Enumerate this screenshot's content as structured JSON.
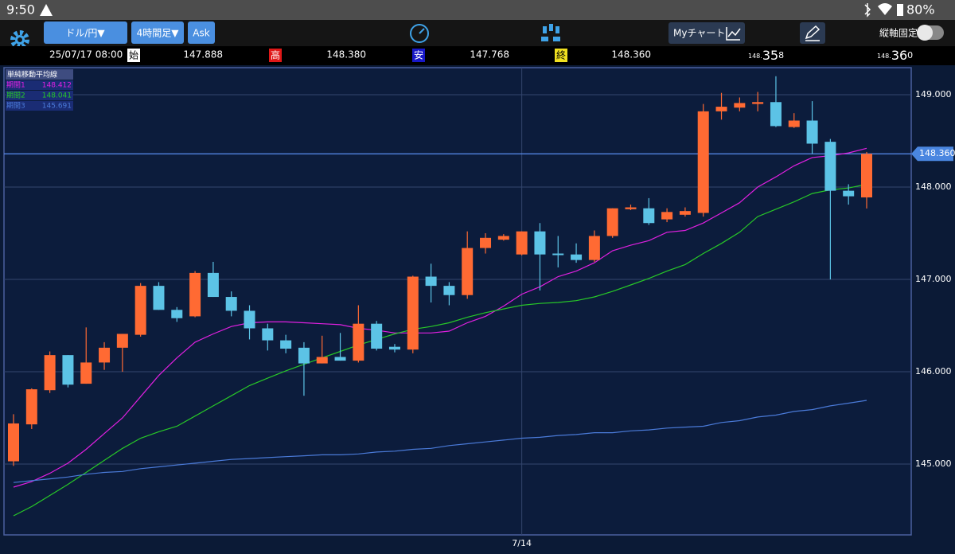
{
  "status_bar": {
    "time": "9:50",
    "battery": "80%"
  },
  "toolbar": {
    "pair": "ドル/円▼",
    "timeframe": "4時間足▼",
    "side": "Ask",
    "my_chart": "Myチャート",
    "axis_lock": "縦軸固定"
  },
  "info": {
    "datetime": "25/07/17 08:00",
    "open_label": "始",
    "open": "147.888",
    "high_label": "高",
    "high": "148.380",
    "low_label": "安",
    "low": "147.768",
    "close_label": "終",
    "close": "148.360"
  },
  "quotes": {
    "bid": {
      "prefix": "148.",
      "big": "35",
      "suffix": "8"
    },
    "ask": {
      "prefix": "148.",
      "big": "36",
      "suffix": "0"
    }
  },
  "chart_data": {
    "type": "candlestick",
    "categories": [
      null,
      null,
      null,
      null,
      null,
      null,
      null,
      null,
      null,
      null,
      null,
      null,
      null,
      null,
      null,
      null,
      null,
      null,
      null,
      null,
      null,
      null,
      null,
      null,
      null,
      null,
      null,
      null,
      "7/14",
      null,
      null,
      null,
      null,
      null,
      null,
      null,
      null,
      null,
      null,
      null,
      null,
      null,
      null,
      null,
      null,
      null,
      null,
      null
    ],
    "open": [
      145.03,
      145.43,
      145.8,
      146.18,
      145.87,
      146.1,
      146.26,
      146.4,
      146.93,
      146.67,
      146.6,
      147.07,
      146.81,
      146.66,
      146.47,
      146.34,
      146.26,
      146.09,
      146.16,
      146.12,
      146.52,
      146.27,
      146.24,
      147.03,
      146.93,
      146.83,
      147.34,
      147.43,
      147.27,
      147.52,
      147.28,
      147.27,
      147.21,
      147.47,
      147.76,
      147.77,
      147.65,
      147.7,
      147.72,
      148.82,
      148.86,
      148.9,
      148.92,
      148.65,
      148.72,
      148.49,
      147.96,
      147.888
    ],
    "high": [
      145.54,
      145.82,
      146.22,
      146.18,
      146.48,
      146.32,
      146.41,
      146.96,
      146.97,
      146.7,
      147.09,
      147.19,
      146.87,
      146.72,
      146.52,
      146.4,
      146.32,
      146.39,
      146.42,
      146.72,
      146.55,
      146.3,
      147.04,
      147.17,
      146.97,
      147.52,
      147.5,
      147.49,
      147.52,
      147.61,
      147.47,
      147.39,
      147.53,
      147.77,
      147.81,
      147.88,
      147.77,
      147.78,
      148.9,
      149.02,
      148.97,
      149.03,
      149.2,
      148.8,
      148.93,
      148.52,
      148.03,
      148.38
    ],
    "low": [
      144.98,
      145.38,
      145.77,
      145.83,
      145.87,
      146.02,
      146.0,
      146.38,
      146.67,
      146.54,
      146.59,
      146.81,
      146.6,
      146.35,
      146.23,
      146.2,
      145.74,
      146.09,
      146.12,
      146.1,
      146.23,
      146.21,
      146.2,
      146.75,
      146.72,
      146.79,
      147.28,
      147.42,
      147.26,
      146.88,
      147.13,
      147.18,
      147.19,
      147.45,
      147.75,
      147.59,
      147.62,
      147.68,
      147.68,
      148.73,
      148.82,
      148.82,
      148.65,
      148.64,
      148.36,
      147.0,
      147.81,
      147.768
    ],
    "close": [
      145.44,
      145.81,
      146.18,
      145.86,
      146.1,
      146.26,
      146.41,
      146.93,
      146.67,
      146.58,
      147.07,
      146.81,
      146.66,
      146.47,
      146.34,
      146.25,
      146.09,
      146.16,
      146.12,
      146.52,
      146.25,
      146.24,
      147.03,
      146.93,
      146.83,
      147.34,
      147.45,
      147.47,
      147.52,
      147.27,
      147.27,
      147.21,
      147.47,
      147.77,
      147.78,
      147.61,
      147.73,
      147.74,
      148.82,
      148.87,
      148.91,
      148.92,
      148.66,
      148.72,
      148.47,
      147.96,
      147.9,
      148.36
    ],
    "up_color": "#ff6a33",
    "down_color": "#5cc3e6",
    "ylim": [
      144.233,
      149.293
    ],
    "yticks": [
      {
        "value": 145,
        "label": "145.000"
      },
      {
        "value": 146,
        "label": "146.000"
      },
      {
        "value": 147,
        "label": "147.000"
      },
      {
        "value": 148,
        "label": "148.000"
      },
      {
        "value": 149,
        "label": "149.000"
      }
    ],
    "grid": true,
    "current_price": {
      "value": 148.36,
      "label": "148.360"
    },
    "legend_title": "単純移動平均線",
    "series": [
      {
        "name": "期間1",
        "color": "#e020e0",
        "legend_value": 148.412,
        "values": [
          144.75,
          144.81,
          144.9,
          145.01,
          145.16,
          145.33,
          145.5,
          145.73,
          145.96,
          146.15,
          146.32,
          146.41,
          146.49,
          146.53,
          146.54,
          146.54,
          146.53,
          146.52,
          146.51,
          146.47,
          146.45,
          146.42,
          146.42,
          146.42,
          146.44,
          146.53,
          146.6,
          146.71,
          146.84,
          146.92,
          147.03,
          147.09,
          147.18,
          147.31,
          147.37,
          147.42,
          147.51,
          147.53,
          147.61,
          147.72,
          147.83,
          148.0,
          148.11,
          148.23,
          148.32,
          148.34,
          148.37,
          148.42
        ]
      },
      {
        "name": "期間2",
        "color": "#28c828",
        "legend_value": 148.041,
        "values": [
          144.44,
          144.54,
          144.66,
          144.78,
          144.91,
          145.04,
          145.17,
          145.28,
          145.35,
          145.41,
          145.52,
          145.63,
          145.74,
          145.85,
          145.93,
          146.01,
          146.08,
          146.15,
          146.22,
          146.29,
          146.35,
          146.41,
          146.46,
          146.49,
          146.53,
          146.59,
          146.64,
          146.68,
          146.72,
          146.74,
          146.75,
          146.77,
          146.81,
          146.87,
          146.94,
          147.01,
          147.09,
          147.16,
          147.28,
          147.39,
          147.51,
          147.68,
          147.76,
          147.84,
          147.93,
          147.97,
          147.99,
          148.03
        ]
      },
      {
        "name": "期間3",
        "color": "#4a7ad8",
        "legend_value": 145.691,
        "values": [
          144.8,
          144.82,
          144.84,
          144.86,
          144.89,
          144.91,
          144.92,
          144.95,
          144.97,
          144.99,
          145.01,
          145.03,
          145.05,
          145.06,
          145.07,
          145.08,
          145.09,
          145.1,
          145.1,
          145.11,
          145.13,
          145.14,
          145.16,
          145.17,
          145.2,
          145.22,
          145.24,
          145.26,
          145.28,
          145.29,
          145.31,
          145.32,
          145.34,
          145.34,
          145.36,
          145.37,
          145.39,
          145.4,
          145.41,
          145.45,
          145.47,
          145.51,
          145.53,
          145.57,
          145.59,
          145.63,
          145.66,
          145.69
        ]
      }
    ]
  }
}
